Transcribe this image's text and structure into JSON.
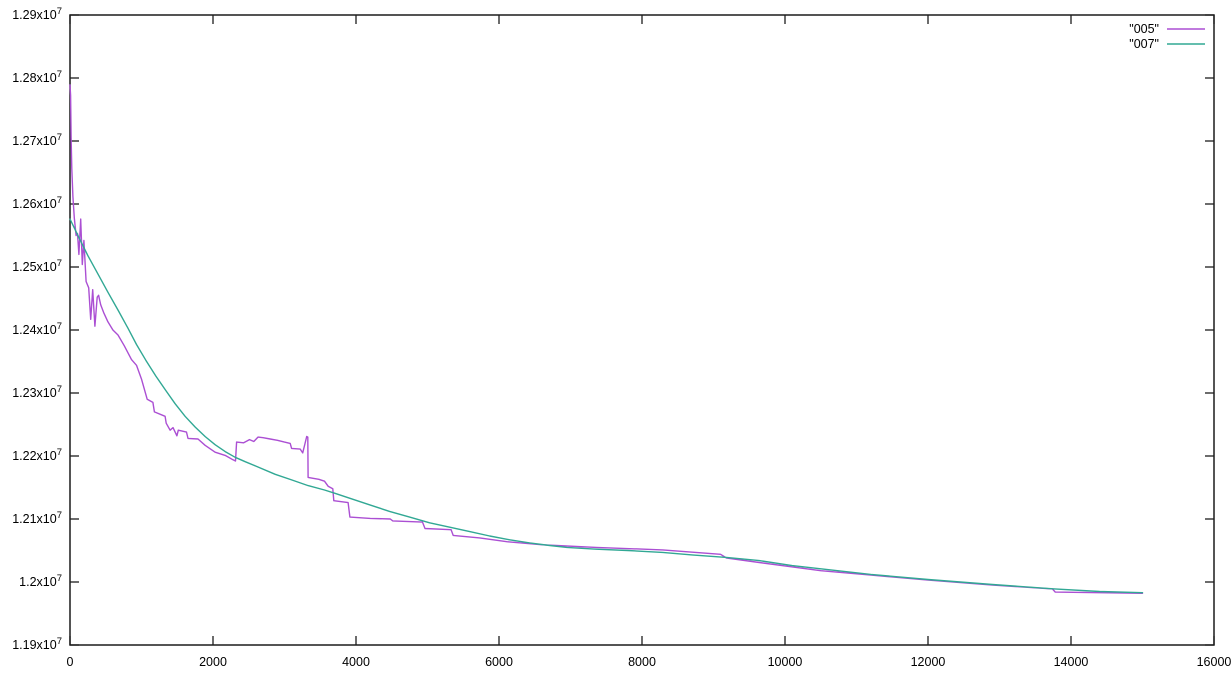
{
  "chart_data": {
    "type": "line",
    "title": "",
    "xlabel": "",
    "ylabel": "",
    "grid": false,
    "legend_position": "top-right",
    "xlim": [
      0,
      16000
    ],
    "ylim": [
      11900000,
      12900000
    ],
    "x_ticks": [
      {
        "value": 0,
        "label": "0"
      },
      {
        "value": 2000,
        "label": "2000"
      },
      {
        "value": 4000,
        "label": "4000"
      },
      {
        "value": 6000,
        "label": "6000"
      },
      {
        "value": 8000,
        "label": "8000"
      },
      {
        "value": 10000,
        "label": "10000"
      },
      {
        "value": 12000,
        "label": "12000"
      },
      {
        "value": 14000,
        "label": "14000"
      },
      {
        "value": 16000,
        "label": "16000"
      }
    ],
    "y_ticks": [
      {
        "value": 11900000,
        "mantissa": "1.19x10",
        "exponent": "7"
      },
      {
        "value": 12000000,
        "mantissa": "1.2x10",
        "exponent": "7"
      },
      {
        "value": 12100000,
        "mantissa": "1.21x10",
        "exponent": "7"
      },
      {
        "value": 12200000,
        "mantissa": "1.22x10",
        "exponent": "7"
      },
      {
        "value": 12300000,
        "mantissa": "1.23x10",
        "exponent": "7"
      },
      {
        "value": 12400000,
        "mantissa": "1.24x10",
        "exponent": "7"
      },
      {
        "value": 12500000,
        "mantissa": "1.25x10",
        "exponent": "7"
      },
      {
        "value": 12600000,
        "mantissa": "1.26x10",
        "exponent": "7"
      },
      {
        "value": 12700000,
        "mantissa": "1.27x10",
        "exponent": "7"
      },
      {
        "value": 12800000,
        "mantissa": "1.28x10",
        "exponent": "7"
      },
      {
        "value": 12900000,
        "mantissa": "1.29x10",
        "exponent": "7"
      }
    ],
    "border_color": "#1c1c1c",
    "tick_color": "#1c1c1c",
    "label_color": "#000000",
    "series": [
      {
        "name": "\"005\"",
        "id": "005",
        "color": "#ab4fd3",
        "points": [
          [
            0,
            12789000
          ],
          [
            8,
            12772000
          ],
          [
            15,
            12706000
          ],
          [
            25,
            12656000
          ],
          [
            40,
            12612000
          ],
          [
            60,
            12578000
          ],
          [
            85,
            12550000
          ],
          [
            105,
            12553000
          ],
          [
            125,
            12520000
          ],
          [
            150,
            12576000
          ],
          [
            172,
            12504000
          ],
          [
            195,
            12542000
          ],
          [
            225,
            12477000
          ],
          [
            262,
            12467000
          ],
          [
            290,
            12417000
          ],
          [
            318,
            12464000
          ],
          [
            348,
            12406000
          ],
          [
            380,
            12452000
          ],
          [
            400,
            12455000
          ],
          [
            430,
            12440000
          ],
          [
            470,
            12428000
          ],
          [
            530,
            12413000
          ],
          [
            600,
            12400000
          ],
          [
            671,
            12392000
          ],
          [
            760,
            12375000
          ],
          [
            860,
            12353000
          ],
          [
            930,
            12344000
          ],
          [
            1000,
            12322000
          ],
          [
            1060,
            12298000
          ],
          [
            1080,
            12290000
          ],
          [
            1160,
            12285000
          ],
          [
            1180,
            12270000
          ],
          [
            1330,
            12263000
          ],
          [
            1345,
            12252000
          ],
          [
            1400,
            12241000
          ],
          [
            1440,
            12245000
          ],
          [
            1495,
            12232000
          ],
          [
            1515,
            12241000
          ],
          [
            1630,
            12238000
          ],
          [
            1650,
            12228000
          ],
          [
            1790,
            12227000
          ],
          [
            1890,
            12217000
          ],
          [
            2030,
            12206000
          ],
          [
            2170,
            12201000
          ],
          [
            2280,
            12194000
          ],
          [
            2315,
            12192000
          ],
          [
            2330,
            12222000
          ],
          [
            2430,
            12221000
          ],
          [
            2510,
            12226000
          ],
          [
            2570,
            12223000
          ],
          [
            2630,
            12230000
          ],
          [
            2700,
            12229000
          ],
          [
            2800,
            12227000
          ],
          [
            2900,
            12225000
          ],
          [
            3000,
            12222000
          ],
          [
            3080,
            12220000
          ],
          [
            3100,
            12212000
          ],
          [
            3220,
            12211000
          ],
          [
            3255,
            12205000
          ],
          [
            3285,
            12219000
          ],
          [
            3310,
            12231000
          ],
          [
            3326,
            12230000
          ],
          [
            3330,
            12166000
          ],
          [
            3480,
            12163000
          ],
          [
            3560,
            12160000
          ],
          [
            3610,
            12152000
          ],
          [
            3676,
            12148000
          ],
          [
            3690,
            12129000
          ],
          [
            3890,
            12126000
          ],
          [
            3915,
            12103000
          ],
          [
            4200,
            12101000
          ],
          [
            4480,
            12100000
          ],
          [
            4515,
            12097000
          ],
          [
            4930,
            12095000
          ],
          [
            4965,
            12085000
          ],
          [
            5330,
            12083000
          ],
          [
            5360,
            12074000
          ],
          [
            5730,
            12070000
          ],
          [
            6110,
            12064000
          ],
          [
            6610,
            12059000
          ],
          [
            6800,
            12058000
          ],
          [
            7360,
            12055000
          ],
          [
            8290,
            12051000
          ],
          [
            9100,
            12044000
          ],
          [
            9185,
            12038000
          ],
          [
            9640,
            12031000
          ],
          [
            10500,
            12018000
          ],
          [
            11200,
            12011000
          ],
          [
            12000,
            12003000
          ],
          [
            12900,
            11995000
          ],
          [
            13740,
            11989000
          ],
          [
            13780,
            11984000
          ],
          [
            14400,
            11983000
          ],
          [
            15000,
            11982000
          ]
        ]
      },
      {
        "name": "\"007\"",
        "id": "007",
        "color": "#31a894",
        "points": [
          [
            0,
            12576000
          ],
          [
            120,
            12548000
          ],
          [
            250,
            12518000
          ],
          [
            400,
            12487000
          ],
          [
            530,
            12460000
          ],
          [
            680,
            12430000
          ],
          [
            810,
            12403000
          ],
          [
            930,
            12377000
          ],
          [
            1060,
            12352000
          ],
          [
            1200,
            12327000
          ],
          [
            1340,
            12304000
          ],
          [
            1470,
            12283000
          ],
          [
            1610,
            12263000
          ],
          [
            1750,
            12246000
          ],
          [
            1890,
            12231000
          ],
          [
            2030,
            12218000
          ],
          [
            2170,
            12207000
          ],
          [
            2310,
            12198000
          ],
          [
            2450,
            12191000
          ],
          [
            2600,
            12184000
          ],
          [
            2870,
            12171000
          ],
          [
            3100,
            12162000
          ],
          [
            3330,
            12153000
          ],
          [
            3560,
            12146000
          ],
          [
            3700,
            12141000
          ],
          [
            3910,
            12133000
          ],
          [
            4200,
            12122000
          ],
          [
            4470,
            12112000
          ],
          [
            4750,
            12103000
          ],
          [
            5030,
            12094000
          ],
          [
            5310,
            12087000
          ],
          [
            5590,
            12080000
          ],
          [
            5870,
            12073000
          ],
          [
            6150,
            12067000
          ],
          [
            6430,
            12062000
          ],
          [
            6710,
            12058000
          ],
          [
            6950,
            12055000
          ],
          [
            7360,
            12052000
          ],
          [
            7800,
            12050000
          ],
          [
            8290,
            12047000
          ],
          [
            8700,
            12043000
          ],
          [
            9180,
            12039000
          ],
          [
            9640,
            12034000
          ],
          [
            10100,
            12026000
          ],
          [
            10500,
            12021000
          ],
          [
            11200,
            12012000
          ],
          [
            12000,
            12004000
          ],
          [
            12900,
            11996000
          ],
          [
            13770,
            11989000
          ],
          [
            14400,
            11985000
          ],
          [
            15000,
            11983000
          ]
        ]
      }
    ]
  }
}
